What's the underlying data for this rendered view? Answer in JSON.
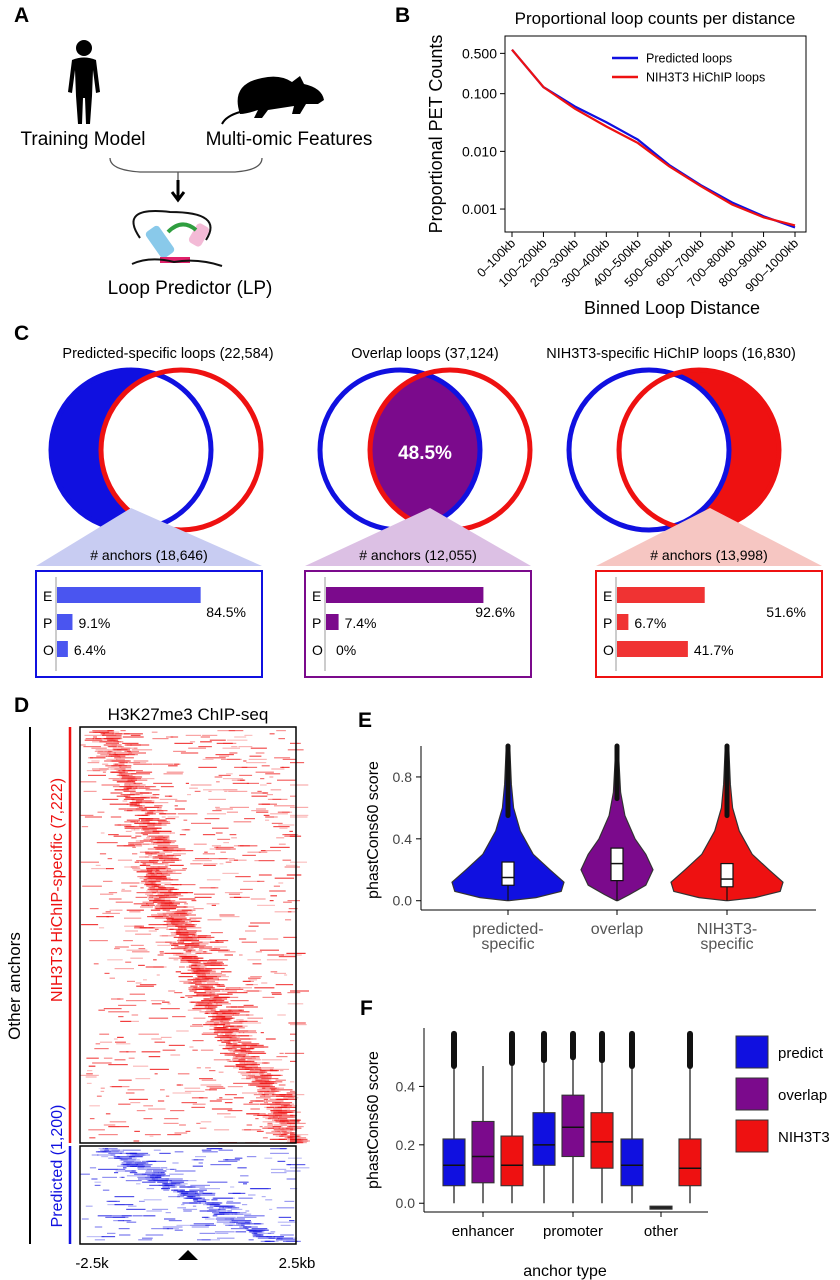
{
  "colors": {
    "blue": "#1010e0",
    "purple": "#7b0a8c",
    "red": "#ee1111",
    "light_blue": "#c8ccf2",
    "light_purple": "#dcc0e4",
    "light_red": "#f6c6c2",
    "bar_blue": "#4a55f0",
    "bar_purple": "#7b0a8c",
    "bar_red": "#f03333"
  },
  "panel_a": {
    "letter": "A",
    "training_label": "Training Model",
    "features_label": "Multi-omic Features",
    "predictor_label": "Loop Predictor (LP)",
    "icons": [
      "human-silhouette-icon",
      "mouse-silhouette-icon",
      "loop-structure-icon"
    ]
  },
  "panel_b": {
    "letter": "B"
  },
  "panel_c": {
    "letter": "C",
    "groups": [
      {
        "title": "Predicted-specific loops (22,584)",
        "anchors_label": "# anchors (18,646)",
        "pct_label": "",
        "bars": [
          {
            "cat": "E",
            "value": 84.5,
            "label": "84.5%"
          },
          {
            "cat": "P",
            "value": 9.1,
            "label": "9.1%"
          },
          {
            "cat": "O",
            "value": 6.4,
            "label": "6.4%"
          }
        ]
      },
      {
        "title": "Overlap loops (37,124)",
        "anchors_label": "# anchors (12,055)",
        "pct_label": "48.5%",
        "bars": [
          {
            "cat": "E",
            "value": 92.6,
            "label": "92.6%"
          },
          {
            "cat": "P",
            "value": 7.4,
            "label": "7.4%"
          },
          {
            "cat": "O",
            "value": 0,
            "label": "0%"
          }
        ]
      },
      {
        "title": "NIH3T3-specific HiChIP loops (16,830)",
        "anchors_label": "# anchors (13,998)",
        "pct_label": "",
        "bars": [
          {
            "cat": "E",
            "value": 51.6,
            "label": "51.6%"
          },
          {
            "cat": "P",
            "value": 6.7,
            "label": "6.7%"
          },
          {
            "cat": "O",
            "value": 41.7,
            "label": "41.7%"
          }
        ]
      }
    ]
  },
  "panel_d": {
    "letter": "D",
    "title": "H3K27me3 ChIP-seq",
    "outer_label": "Other anchors",
    "hichip_label": "NIH3T3 HiChIP-specific (7,222)",
    "predicted_label": "Predicted (1,200)",
    "x_left": "-2.5k",
    "x_right": "2.5kb"
  },
  "panel_e": {
    "letter": "E"
  },
  "panel_f": {
    "letter": "F"
  },
  "chart_data": [
    {
      "panel": "B",
      "type": "line",
      "title": "Proportional loop counts per distance",
      "xlabel": "Binned Loop Distance",
      "ylabel": "Proportional PET Counts",
      "yscale": "log",
      "ylim": [
        0.0004,
        1.0
      ],
      "yticks": [
        0.5,
        0.1,
        0.01,
        0.001
      ],
      "ytick_labels": [
        "0.500",
        "0.100",
        "0.010",
        "0.001"
      ],
      "categories": [
        "0–100kb",
        "100–200kb",
        "200–300kb",
        "300–400kb",
        "400–500kb",
        "500–600kb",
        "600–700kb",
        "700–800kb",
        "800–900kb",
        "900–1000kb"
      ],
      "legend_position": "top-right",
      "series": [
        {
          "name": "Predicted loops",
          "color": "#1010e0",
          "values": [
            0.58,
            0.13,
            0.06,
            0.032,
            0.016,
            0.0058,
            0.0026,
            0.0013,
            0.00075,
            0.00048
          ]
        },
        {
          "name": "NIH3T3 HiChIP loops",
          "color": "#ee1111",
          "values": [
            0.58,
            0.13,
            0.055,
            0.027,
            0.014,
            0.0055,
            0.0025,
            0.0012,
            0.00072,
            0.00052
          ]
        }
      ]
    },
    {
      "panel": "E",
      "type": "violin",
      "ylabel": "phastCons60 score",
      "ylim": [
        -0.06,
        1.0
      ],
      "yticks": [
        0.0,
        0.4,
        0.8
      ],
      "ytick_labels": [
        "0.0",
        "0.4",
        "0.8"
      ],
      "categories": [
        "predicted-\nspecific",
        "overlap",
        "NIH3T3-\nspecific"
      ],
      "series": [
        {
          "name": "predicted-specific",
          "color": "#1010e0",
          "q1": 0.1,
          "median": 0.15,
          "q3": 0.25,
          "whisker_low": 0.0,
          "whisker_high": 0.55,
          "max": 1.0
        },
        {
          "name": "overlap",
          "color": "#7b0a8c",
          "q1": 0.13,
          "median": 0.24,
          "q3": 0.34,
          "whisker_low": 0.0,
          "whisker_high": 0.66,
          "max": 1.0
        },
        {
          "name": "NIH3T3-specific",
          "color": "#ee1111",
          "q1": 0.09,
          "median": 0.14,
          "q3": 0.24,
          "whisker_low": 0.0,
          "whisker_high": 0.55,
          "max": 1.0
        }
      ]
    },
    {
      "panel": "F",
      "type": "box",
      "xlabel": "anchor type",
      "ylabel": "phastCons60 score",
      "ylim": [
        -0.03,
        0.6
      ],
      "yticks": [
        0.0,
        0.2,
        0.4
      ],
      "ytick_labels": [
        "0.0",
        "0.2",
        "0.4"
      ],
      "categories": [
        "enhancer",
        "promoter",
        "other"
      ],
      "legend": [
        {
          "name": "predict",
          "color": "#1010e0"
        },
        {
          "name": "overlap",
          "color": "#7b0a8c"
        },
        {
          "name": "NIH3T3",
          "color": "#ee1111"
        }
      ],
      "boxes": [
        {
          "category": "enhancer",
          "group": "predict",
          "whisker_low": 0.0,
          "q1": 0.06,
          "median": 0.13,
          "q3": 0.22,
          "whisker_high": 0.47,
          "outlier_max": 0.58
        },
        {
          "category": "enhancer",
          "group": "overlap",
          "whisker_low": 0.0,
          "q1": 0.07,
          "median": 0.16,
          "q3": 0.28,
          "whisker_high": 0.47,
          "outlier_max": null
        },
        {
          "category": "enhancer",
          "group": "NIH3T3",
          "whisker_low": 0.0,
          "q1": 0.06,
          "median": 0.13,
          "q3": 0.23,
          "whisker_high": 0.48,
          "outlier_max": 0.58
        },
        {
          "category": "promoter",
          "group": "predict",
          "whisker_low": 0.0,
          "q1": 0.13,
          "median": 0.2,
          "q3": 0.31,
          "whisker_high": 0.49,
          "outlier_max": 0.58
        },
        {
          "category": "promoter",
          "group": "overlap",
          "whisker_low": 0.0,
          "q1": 0.16,
          "median": 0.26,
          "q3": 0.37,
          "whisker_high": 0.5,
          "outlier_max": 0.58
        },
        {
          "category": "promoter",
          "group": "NIH3T3",
          "whisker_low": 0.0,
          "q1": 0.12,
          "median": 0.21,
          "q3": 0.31,
          "whisker_high": 0.49,
          "outlier_max": 0.58
        },
        {
          "category": "other",
          "group": "predict",
          "whisker_low": 0.0,
          "q1": 0.06,
          "median": 0.13,
          "q3": 0.22,
          "whisker_high": 0.47,
          "outlier_max": 0.58
        },
        {
          "category": "other",
          "group": "overlap",
          "whisker_low": -0.01,
          "q1": -0.01,
          "median": -0.01,
          "q3": -0.01,
          "whisker_high": -0.01,
          "outlier_max": null
        },
        {
          "category": "other",
          "group": "NIH3T3",
          "whisker_low": 0.0,
          "q1": 0.06,
          "median": 0.12,
          "q3": 0.22,
          "whisker_high": 0.47,
          "outlier_max": 0.58
        }
      ]
    }
  ]
}
